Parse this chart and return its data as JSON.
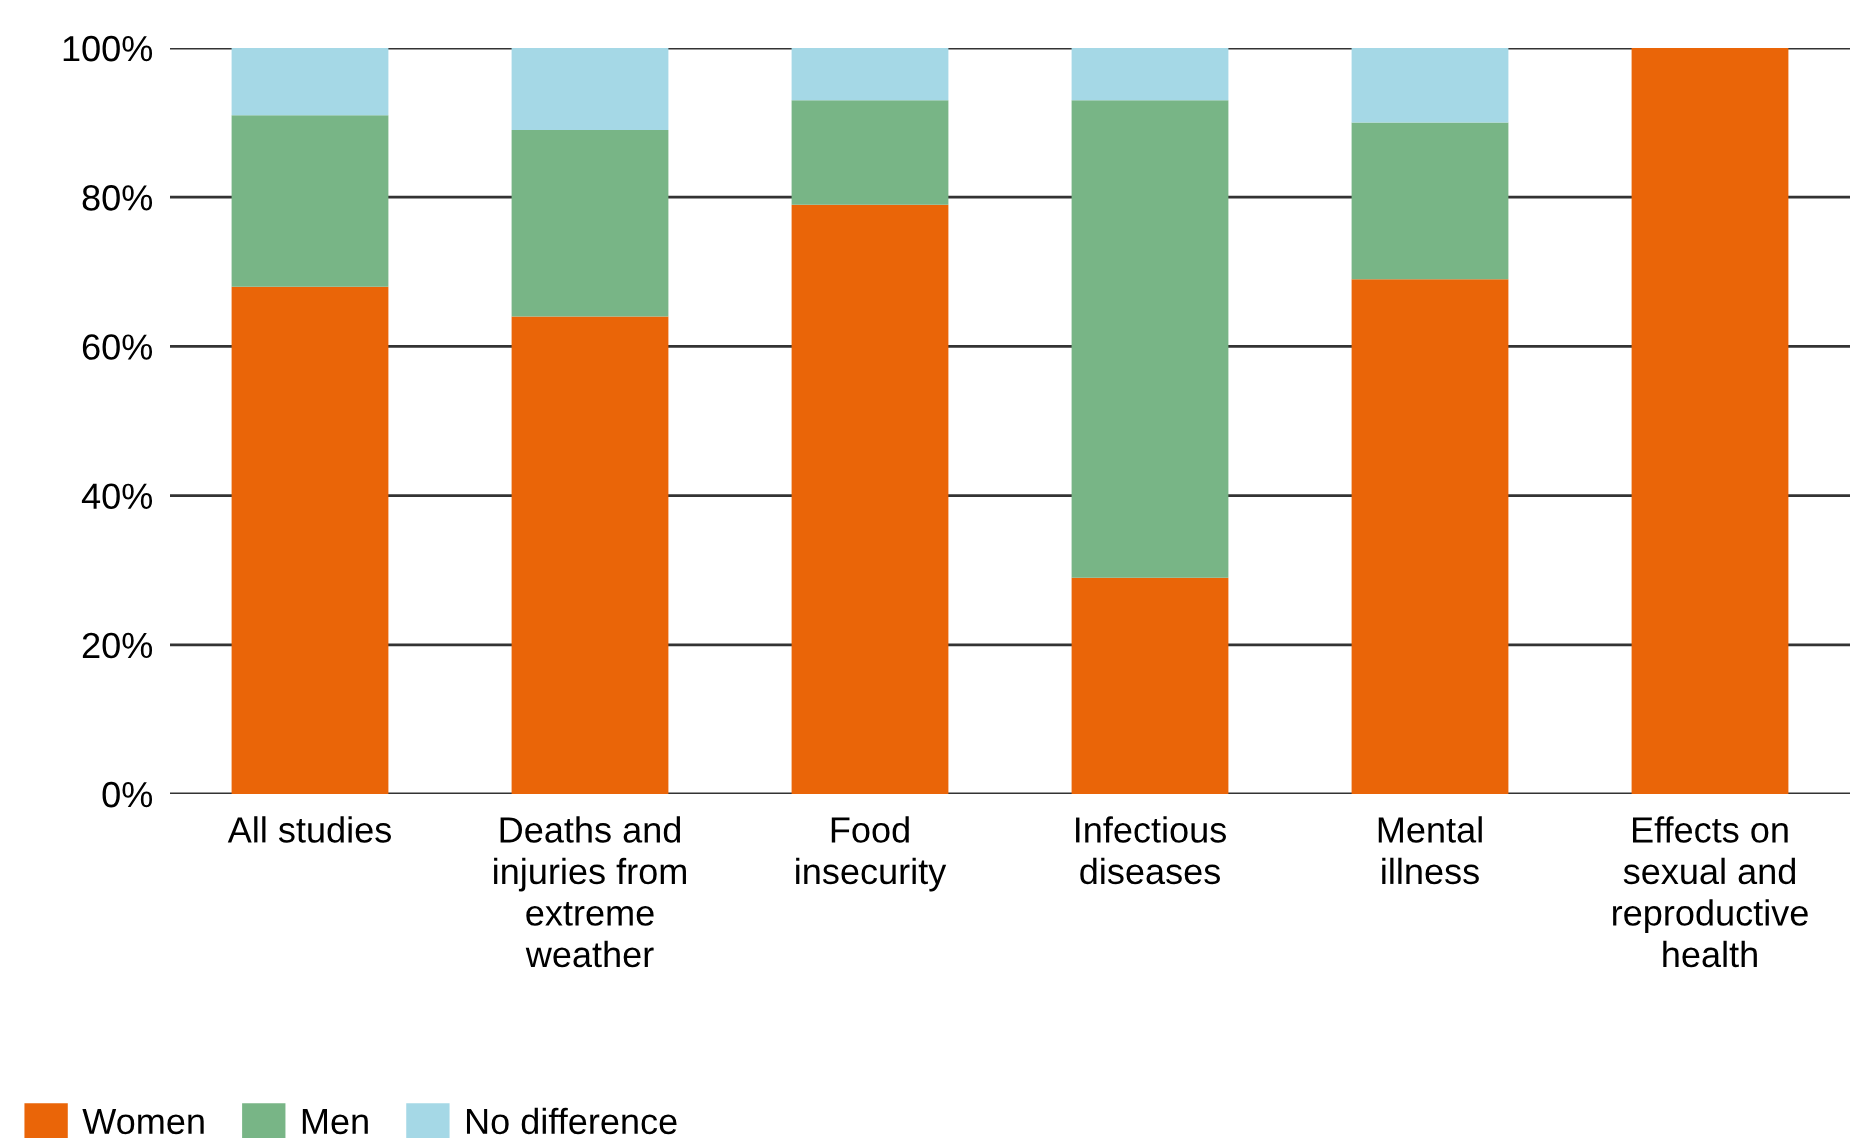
{
  "chart_data": {
    "type": "bar",
    "stacked": true,
    "categories": [
      "All studies",
      "Deaths and\ninjuries from\nextreme\nweather",
      "Food\ninsecurity",
      "Infectious\ndiseases",
      "Mental\nillness",
      "Effects on\nsexual and\nreproductive\nhealth"
    ],
    "series": [
      {
        "name": "Women",
        "color": "#ea6508",
        "values": [
          68,
          64,
          79,
          29,
          69,
          100
        ]
      },
      {
        "name": "Men",
        "color": "#78b586",
        "values": [
          23,
          25,
          14,
          64,
          21,
          0
        ]
      },
      {
        "name": "No difference",
        "color": "#a5d8e6",
        "values": [
          9,
          11,
          7,
          7,
          10,
          0
        ]
      }
    ],
    "ylim": [
      0,
      100
    ],
    "yticks": [
      {
        "value": 0,
        "label": "0%"
      },
      {
        "value": 20,
        "label": "20%"
      },
      {
        "value": 40,
        "label": "40%"
      },
      {
        "value": 60,
        "label": "60%"
      },
      {
        "value": 80,
        "label": "80%"
      },
      {
        "value": 100,
        "label": "100%"
      }
    ],
    "grid": "y",
    "legend": "bottom left"
  }
}
